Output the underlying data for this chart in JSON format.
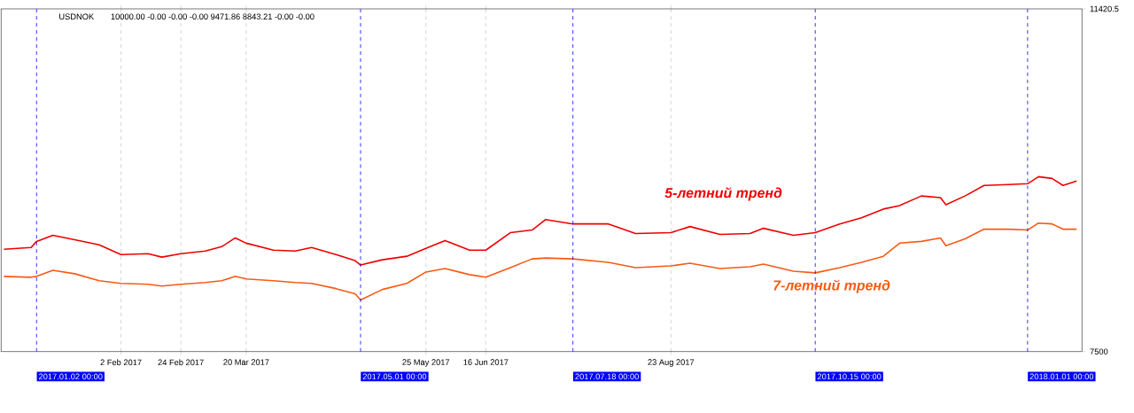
{
  "chart_data": {
    "type": "line",
    "annotations": [
      "USDNOK",
      "10000.00 -0.00 -0.00 -0.00 9471.86 8843.21 -0.00 -0.00"
    ],
    "x": [
      "2016-12-21",
      "2016-12-31",
      "2017-01-02",
      "2017-01-08",
      "2017-01-16",
      "2017-01-25",
      "2017-02-02",
      "2017-02-12",
      "2017-02-17",
      "2017-02-24",
      "2017-03-05",
      "2017-03-11",
      "2017-03-16",
      "2017-03-20",
      "2017-03-30",
      "2017-04-07",
      "2017-04-13",
      "2017-04-22",
      "2017-04-29",
      "2017-05-01",
      "2017-05-09",
      "2017-05-18",
      "2017-05-25",
      "2017-06-01",
      "2017-06-10",
      "2017-06-16",
      "2017-06-25",
      "2017-07-03",
      "2017-07-08",
      "2017-07-18",
      "2017-07-31",
      "2017-08-10",
      "2017-08-23",
      "2017-08-30",
      "2017-09-10",
      "2017-09-21",
      "2017-09-26",
      "2017-10-07",
      "2017-10-15",
      "2017-10-24",
      "2017-11-01",
      "2017-11-09",
      "2017-11-15",
      "2017-11-23",
      "2017-11-30",
      "2017-12-02",
      "2017-12-09",
      "2017-12-16",
      "2017-12-25",
      "2018-01-01",
      "2018-01-05",
      "2018-01-10",
      "2018-01-14",
      "2018-01-19"
    ],
    "series": [
      {
        "name": "5-летний тренд",
        "color": "#f00000",
        "values": [
          8670,
          8690,
          8760,
          8830,
          8780,
          8720,
          8610,
          8620,
          8580,
          8620,
          8650,
          8700,
          8800,
          8740,
          8660,
          8650,
          8690,
          8610,
          8540,
          8490,
          8550,
          8590,
          8680,
          8770,
          8660,
          8660,
          8860,
          8890,
          9010,
          8960,
          8960,
          8850,
          8860,
          8930,
          8840,
          8850,
          8910,
          8830,
          8860,
          8960,
          9030,
          9130,
          9170,
          9280,
          9260,
          9180,
          9280,
          9400,
          9410,
          9420,
          9500,
          9480,
          9400,
          9450
        ]
      },
      {
        "name": "7-летний тренд",
        "color": "#f85a14",
        "values": [
          8360,
          8350,
          8360,
          8430,
          8390,
          8310,
          8280,
          8270,
          8250,
          8270,
          8290,
          8310,
          8360,
          8330,
          8310,
          8290,
          8280,
          8220,
          8160,
          8090,
          8210,
          8280,
          8410,
          8450,
          8380,
          8350,
          8460,
          8560,
          8570,
          8560,
          8520,
          8460,
          8480,
          8510,
          8450,
          8470,
          8500,
          8420,
          8400,
          8460,
          8520,
          8590,
          8740,
          8760,
          8800,
          8710,
          8790,
          8900,
          8900,
          8890,
          8970,
          8960,
          8900,
          8900
        ]
      }
    ],
    "xlim": [
      "2016-12-20",
      "2018-01-21"
    ],
    "ylim": [
      7500,
      11420.5
    ],
    "yticks": [
      7500,
      11420.5
    ],
    "xticks": [
      {
        "value": "2017-02-02",
        "label": "2 Feb 2017"
      },
      {
        "value": "2017-02-24",
        "label": "24 Feb 2017"
      },
      {
        "value": "2017-03-20",
        "label": "20 Mar 2017"
      },
      {
        "value": "2017-05-25",
        "label": "25 May 2017"
      },
      {
        "value": "2017-06-16",
        "label": "16 Jun 2017"
      },
      {
        "value": "2017-08-23",
        "label": "23 Aug 2017"
      }
    ],
    "grid": "x",
    "ref_lines": [
      {
        "axis": "x",
        "value": "2017-01-02",
        "label": "2017.01.02 00:00",
        "color": "#0000ff",
        "line_style": "dashed"
      },
      {
        "axis": "x",
        "value": "2017-05-01",
        "label": "2017.05.01 00:00",
        "color": "#0000ff",
        "line_style": "dashed"
      },
      {
        "axis": "x",
        "value": "2017-07-18",
        "label": "2017.07.18 00:00",
        "color": "#0000ff",
        "line_style": "dashed"
      },
      {
        "axis": "x",
        "value": "2017-10-15",
        "label": "2017.10.15 00:00",
        "color": "#0000ff",
        "line_style": "dashed"
      },
      {
        "axis": "x",
        "value": "2018-01-01",
        "label": "2018.01.01 00:00",
        "color": "#0000ff",
        "line_style": "dashed"
      }
    ],
    "line_style": "solid",
    "marker": "none"
  }
}
